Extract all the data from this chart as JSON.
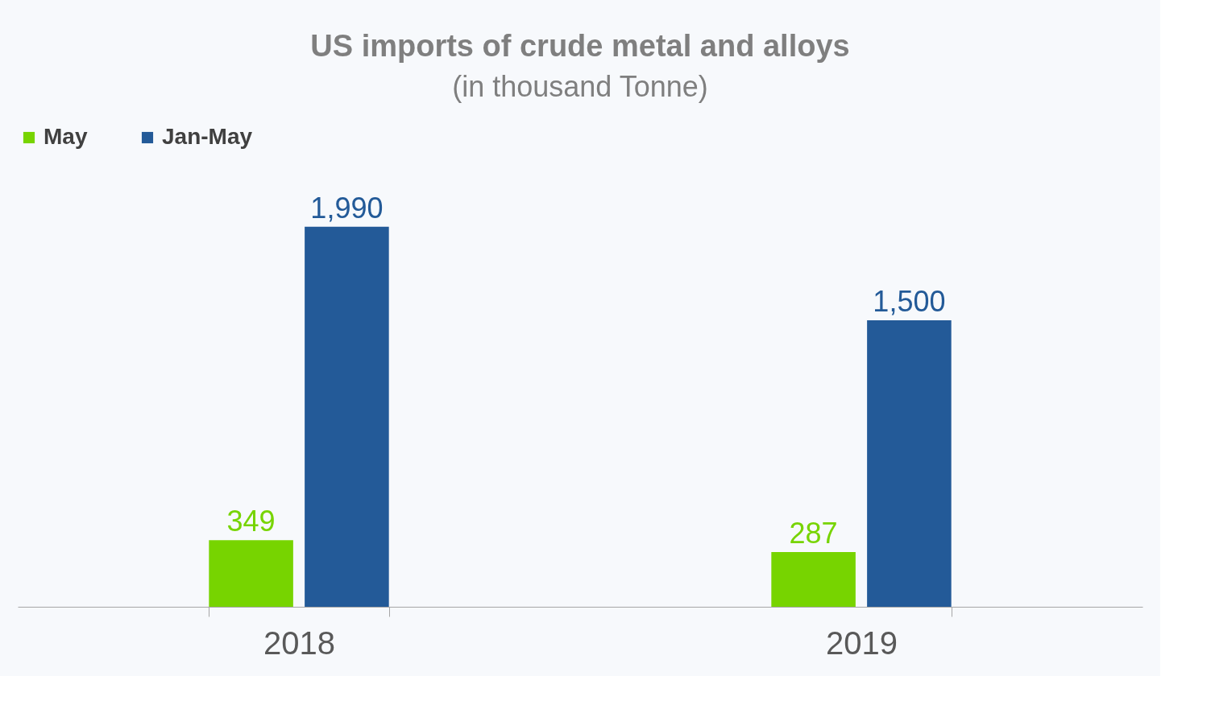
{
  "chart_data": {
    "type": "bar",
    "title": "US imports of crude metal and alloys",
    "subtitle": "(in thousand Tonne)",
    "categories": [
      "2018",
      "2019"
    ],
    "series": [
      {
        "name": "May",
        "color": "#77d400",
        "values": [
          349,
          287
        ],
        "value_labels": [
          "349",
          "287"
        ]
      },
      {
        "name": "Jan-May",
        "color": "#235a98",
        "values": [
          1990,
          1500
        ],
        "value_labels": [
          "1,990",
          "1,500"
        ]
      }
    ],
    "legend": "top",
    "grid": false,
    "tick_labels": "x"
  }
}
